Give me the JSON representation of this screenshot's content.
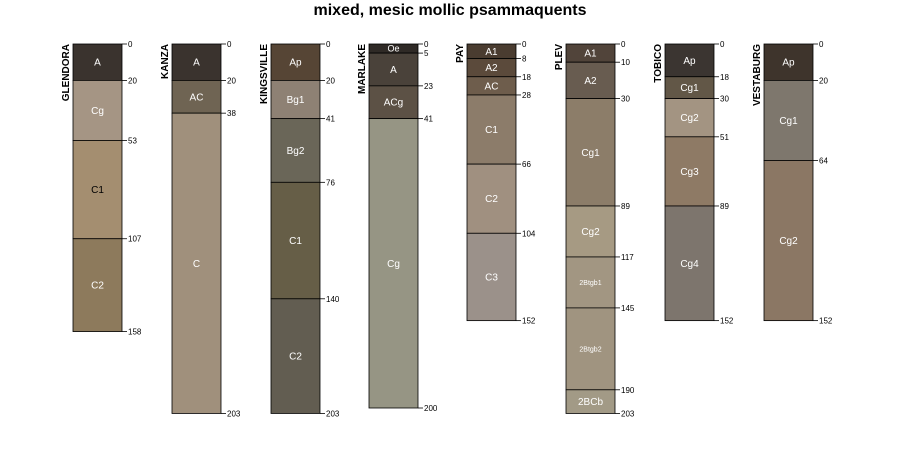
{
  "chart_data": {
    "type": "soil-profile",
    "title": "mixed, mesic mollic psammaquents",
    "depth_unit": "cm",
    "profiles": [
      {
        "name": "GLENDORA",
        "horizons": [
          {
            "name": "A",
            "top": 0,
            "bottom": 20,
            "color": "#3a332e"
          },
          {
            "name": "Cg",
            "top": 20,
            "bottom": 53,
            "color": "#a59584"
          },
          {
            "name": "C1",
            "top": 53,
            "bottom": 107,
            "color": "#a48e70"
          },
          {
            "name": "C2",
            "top": 107,
            "bottom": 158,
            "color": "#8d7a5c"
          }
        ]
      },
      {
        "name": "KANZA",
        "horizons": [
          {
            "name": "A",
            "top": 0,
            "bottom": 20,
            "color": "#3a332e"
          },
          {
            "name": "AC",
            "top": 20,
            "bottom": 38,
            "color": "#6f6453"
          },
          {
            "name": "C",
            "top": 38,
            "bottom": 203,
            "color": "#a0907c"
          }
        ]
      },
      {
        "name": "KINGSVILLE",
        "horizons": [
          {
            "name": "Ap",
            "top": 0,
            "bottom": 20,
            "color": "#564535"
          },
          {
            "name": "Bg1",
            "top": 20,
            "bottom": 41,
            "color": "#8e8174"
          },
          {
            "name": "Bg2",
            "top": 41,
            "bottom": 76,
            "color": "#6a6658"
          },
          {
            "name": "C1",
            "top": 76,
            "bottom": 140,
            "color": "#665e47"
          },
          {
            "name": "C2",
            "top": 140,
            "bottom": 203,
            "color": "#625d51"
          }
        ]
      },
      {
        "name": "MARLAKE",
        "horizons": [
          {
            "name": "Oe",
            "top": 0,
            "bottom": 5,
            "color": "#2f2a26"
          },
          {
            "name": "A",
            "top": 5,
            "bottom": 23,
            "color": "#4a423a"
          },
          {
            "name": "ACg",
            "top": 23,
            "bottom": 41,
            "color": "#5c5145"
          },
          {
            "name": "Cg",
            "top": 41,
            "bottom": 200,
            "color": "#969584"
          }
        ]
      },
      {
        "name": "PAY",
        "horizons": [
          {
            "name": "A1",
            "top": 0,
            "bottom": 8,
            "color": "#4a3c30"
          },
          {
            "name": "A2",
            "top": 8,
            "bottom": 18,
            "color": "#5b4a3b"
          },
          {
            "name": "AC",
            "top": 18,
            "bottom": 28,
            "color": "#6e5d4c"
          },
          {
            "name": "C1",
            "top": 28,
            "bottom": 66,
            "color": "#8c7c6a"
          },
          {
            "name": "C2",
            "top": 66,
            "bottom": 104,
            "color": "#a09080"
          },
          {
            "name": "C3",
            "top": 104,
            "bottom": 152,
            "color": "#9b918a"
          }
        ]
      },
      {
        "name": "PLEV",
        "horizons": [
          {
            "name": "A1",
            "top": 0,
            "bottom": 10,
            "color": "#51443a"
          },
          {
            "name": "A2",
            "top": 10,
            "bottom": 30,
            "color": "#685c50"
          },
          {
            "name": "Cg1",
            "top": 30,
            "bottom": 89,
            "color": "#8c7d69"
          },
          {
            "name": "Cg2",
            "top": 89,
            "bottom": 117,
            "color": "#a69a83"
          },
          {
            "name": "2Btgb1",
            "top": 117,
            "bottom": 145,
            "color": "#a29682"
          },
          {
            "name": "2Btgb2",
            "top": 145,
            "bottom": 190,
            "color": "#a09480"
          },
          {
            "name": "2BCb",
            "top": 190,
            "bottom": 203,
            "color": "#a29a86"
          }
        ]
      },
      {
        "name": "TOBICO",
        "horizons": [
          {
            "name": "Ap",
            "top": 0,
            "bottom": 18,
            "color": "#3b3531"
          },
          {
            "name": "Cg1",
            "top": 18,
            "bottom": 30,
            "color": "#625747"
          },
          {
            "name": "Cg2",
            "top": 30,
            "bottom": 51,
            "color": "#a39482"
          },
          {
            "name": "Cg3",
            "top": 51,
            "bottom": 89,
            "color": "#8e7a65"
          },
          {
            "name": "Cg4",
            "top": 89,
            "bottom": 152,
            "color": "#7d756d"
          }
        ]
      },
      {
        "name": "VESTABURG",
        "horizons": [
          {
            "name": "Ap",
            "top": 0,
            "bottom": 20,
            "color": "#3e342c"
          },
          {
            "name": "Cg1",
            "top": 20,
            "bottom": 64,
            "color": "#7e776d"
          },
          {
            "name": "Cg2",
            "top": 64,
            "bottom": 152,
            "color": "#8b7764"
          }
        ]
      }
    ]
  }
}
